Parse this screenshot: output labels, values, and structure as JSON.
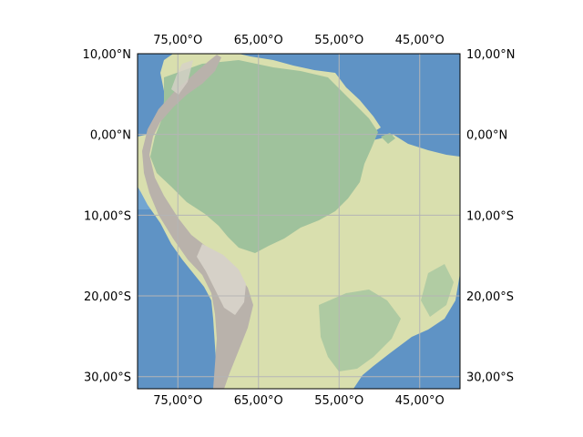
{
  "map": {
    "projection": "PlateCarree",
    "extent": {
      "lon_min": -80,
      "lon_max": -40,
      "lat_min": -31.5,
      "lat_max": 10
    },
    "gridlines": true,
    "gridline_color": "#b5b5b5",
    "colors": {
      "ocean": "#5f93c5",
      "ocean_light": "#7fb0d8",
      "rainforest": "#9fc29c",
      "savanna": "#d9dfae",
      "mountains": "#b9b2ab",
      "mountain_highlight": "#d6d1c8",
      "frame": "#000000"
    },
    "lon_ticks": [
      {
        "lon": -75,
        "label": "75,00°O"
      },
      {
        "lon": -65,
        "label": "65,00°O"
      },
      {
        "lon": -55,
        "label": "55,00°O"
      },
      {
        "lon": -45,
        "label": "45,00°O"
      }
    ],
    "lat_ticks": [
      {
        "lat": 10,
        "label": "10,00°N"
      },
      {
        "lat": 0,
        "label": "0,00°N"
      },
      {
        "lat": -10,
        "label": "10,00°S"
      },
      {
        "lat": -20,
        "label": "20,00°S"
      },
      {
        "lat": -30,
        "label": "30,00°S"
      }
    ]
  }
}
